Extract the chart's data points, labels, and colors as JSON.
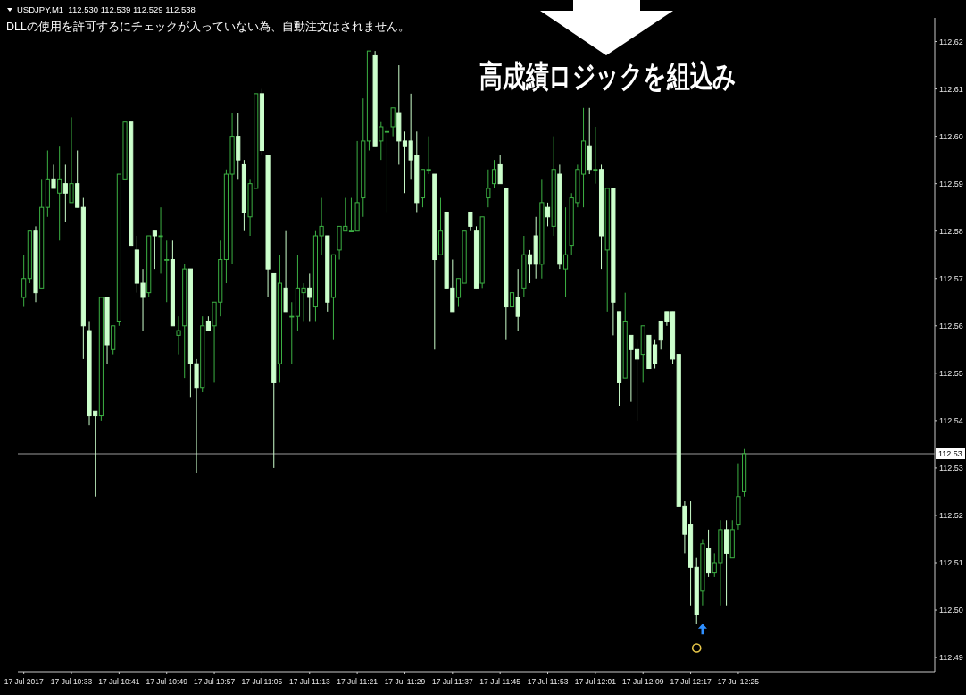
{
  "chart_data": {
    "type": "candlestick",
    "title": "USDJPY,M1  112.530 112.539 112.529 112.538",
    "subtitle": "DLLの使用を許可するにチェックが入っていない為、自動注文はされません。",
    "annotations": [
      "高成績ロジックを組込み",
      {
        "text": "112.53",
        "y": 112.538
      }
    ],
    "x": [
      "2017-07-17T10:25",
      "2017-07-17T10:26",
      "2017-07-17T10:27",
      "2017-07-17T10:28",
      "2017-07-17T10:29",
      "2017-07-17T10:30",
      "2017-07-17T10:31",
      "2017-07-17T10:32",
      "2017-07-17T10:33",
      "2017-07-17T10:34",
      "2017-07-17T10:35",
      "2017-07-17T10:36",
      "2017-07-17T10:37",
      "2017-07-17T10:38",
      "2017-07-17T10:39",
      "2017-07-17T10:40",
      "2017-07-17T10:41",
      "2017-07-17T10:42",
      "2017-07-17T10:43",
      "2017-07-17T10:44",
      "2017-07-17T10:45",
      "2017-07-17T10:46",
      "2017-07-17T10:47",
      "2017-07-17T10:48",
      "2017-07-17T10:49",
      "2017-07-17T10:50",
      "2017-07-17T10:51",
      "2017-07-17T10:52",
      "2017-07-17T10:53",
      "2017-07-17T10:54",
      "2017-07-17T10:55",
      "2017-07-17T10:56",
      "2017-07-17T10:57",
      "2017-07-17T10:58",
      "2017-07-17T10:59",
      "2017-07-17T11:00",
      "2017-07-17T11:01",
      "2017-07-17T11:02",
      "2017-07-17T11:03",
      "2017-07-17T11:04",
      "2017-07-17T11:05",
      "2017-07-17T11:06",
      "2017-07-17T11:07",
      "2017-07-17T11:08",
      "2017-07-17T11:09",
      "2017-07-17T11:10",
      "2017-07-17T11:11",
      "2017-07-17T11:12",
      "2017-07-17T11:13",
      "2017-07-17T11:14",
      "2017-07-17T11:15",
      "2017-07-17T11:16",
      "2017-07-17T11:17",
      "2017-07-17T11:18",
      "2017-07-17T11:19",
      "2017-07-17T11:20",
      "2017-07-17T11:21",
      "2017-07-17T11:22",
      "2017-07-17T11:23",
      "2017-07-17T11:24",
      "2017-07-17T11:25",
      "2017-07-17T11:26",
      "2017-07-17T11:27",
      "2017-07-17T11:28",
      "2017-07-17T11:29",
      "2017-07-17T11:30",
      "2017-07-17T11:31",
      "2017-07-17T11:32",
      "2017-07-17T11:33",
      "2017-07-17T11:34",
      "2017-07-17T11:35",
      "2017-07-17T11:36",
      "2017-07-17T11:37",
      "2017-07-17T11:38",
      "2017-07-17T11:39",
      "2017-07-17T11:40",
      "2017-07-17T11:41",
      "2017-07-17T11:42",
      "2017-07-17T11:43",
      "2017-07-17T11:44",
      "2017-07-17T11:45",
      "2017-07-17T11:46",
      "2017-07-17T11:47",
      "2017-07-17T11:48",
      "2017-07-17T11:49",
      "2017-07-17T11:50",
      "2017-07-17T11:51",
      "2017-07-17T11:52",
      "2017-07-17T11:53",
      "2017-07-17T11:54",
      "2017-07-17T11:55",
      "2017-07-17T11:56",
      "2017-07-17T11:57",
      "2017-07-17T11:58",
      "2017-07-17T11:59",
      "2017-07-17T12:00",
      "2017-07-17T12:01",
      "2017-07-17T12:02",
      "2017-07-17T12:03",
      "2017-07-17T12:04",
      "2017-07-17T12:05",
      "2017-07-17T12:06",
      "2017-07-17T12:07",
      "2017-07-17T12:08",
      "2017-07-17T12:09",
      "2017-07-17T12:10",
      "2017-07-17T12:11",
      "2017-07-17T12:12",
      "2017-07-17T12:13",
      "2017-07-17T12:14",
      "2017-07-17T12:15",
      "2017-07-17T12:16",
      "2017-07-17T12:17",
      "2017-07-17T12:18",
      "2017-07-17T12:19",
      "2017-07-17T12:20",
      "2017-07-17T12:21",
      "2017-07-17T12:22",
      "2017-07-17T12:23",
      "2017-07-17T12:24",
      "2017-07-17T12:25",
      "2017-07-17T12:26"
    ],
    "ohlc": [
      [
        112.571,
        112.58,
        112.569,
        112.575
      ],
      [
        112.575,
        112.585,
        112.574,
        112.585
      ],
      [
        112.585,
        112.586,
        112.57,
        112.572
      ],
      [
        112.573,
        112.596,
        112.573,
        112.59
      ],
      [
        112.59,
        112.602,
        112.588,
        112.596
      ],
      [
        112.596,
        112.599,
        112.594,
        112.594
      ],
      [
        112.593,
        112.603,
        112.583,
        112.596
      ],
      [
        112.595,
        112.599,
        112.587,
        112.593
      ],
      [
        112.591,
        112.609,
        112.591,
        112.595
      ],
      [
        112.595,
        112.602,
        112.59,
        112.59
      ],
      [
        112.59,
        112.592,
        112.558,
        112.565
      ],
      [
        112.564,
        112.566,
        112.544,
        112.546
      ],
      [
        112.547,
        112.547,
        112.529,
        112.546
      ],
      [
        112.546,
        112.571,
        112.545,
        112.571
      ],
      [
        112.571,
        112.571,
        112.557,
        112.561
      ],
      [
        112.56,
        112.565,
        112.559,
        112.565
      ],
      [
        112.566,
        112.597,
        112.565,
        112.597
      ],
      [
        112.596,
        112.608,
        112.596,
        112.608
      ],
      [
        112.608,
        112.608,
        112.582,
        112.582
      ],
      [
        112.581,
        112.584,
        112.572,
        112.574
      ],
      [
        112.574,
        112.577,
        112.564,
        112.571
      ],
      [
        112.572,
        112.584,
        112.571,
        112.584
      ],
      [
        112.585,
        112.585,
        112.577,
        112.584
      ],
      [
        112.584,
        112.59,
        112.576,
        112.584
      ],
      [
        112.579,
        112.583,
        112.57,
        112.579
      ],
      [
        112.579,
        112.583,
        112.565,
        112.565
      ],
      [
        112.563,
        112.567,
        112.559,
        112.564
      ],
      [
        112.565,
        112.578,
        112.554,
        112.577
      ],
      [
        112.577,
        112.577,
        112.55,
        112.557
      ],
      [
        112.557,
        112.558,
        112.534,
        112.552
      ],
      [
        112.552,
        112.567,
        112.551,
        112.565
      ],
      [
        112.566,
        112.567,
        112.564,
        112.564
      ],
      [
        112.565,
        112.57,
        112.553,
        112.57
      ],
      [
        112.57,
        112.583,
        112.567,
        112.579
      ],
      [
        112.579,
        112.598,
        112.574,
        112.597
      ],
      [
        112.597,
        112.61,
        112.578,
        112.605
      ],
      [
        112.605,
        112.61,
        112.596,
        112.6
      ],
      [
        112.599,
        112.6,
        112.585,
        112.589
      ],
      [
        112.588,
        112.596,
        112.584,
        112.595
      ],
      [
        112.594,
        112.614,
        112.594,
        112.614
      ],
      [
        112.614,
        112.615,
        112.601,
        112.602
      ],
      [
        112.601,
        112.601,
        112.571,
        112.577
      ],
      [
        112.576,
        112.576,
        112.535,
        112.553
      ],
      [
        112.557,
        112.58,
        112.553,
        112.574
      ],
      [
        112.573,
        112.585,
        112.568,
        112.568
      ],
      [
        112.567,
        112.57,
        112.557,
        112.567
      ],
      [
        112.567,
        112.58,
        112.564,
        112.573
      ],
      [
        112.572,
        112.574,
        112.566,
        112.573
      ],
      [
        112.573,
        112.576,
        112.566,
        112.571
      ],
      [
        112.569,
        112.585,
        112.566,
        112.584
      ],
      [
        112.584,
        112.592,
        112.58,
        112.586
      ],
      [
        112.584,
        112.584,
        112.568,
        112.57
      ],
      [
        112.571,
        112.58,
        112.562,
        112.58
      ],
      [
        112.581,
        112.586,
        112.579,
        112.586
      ],
      [
        112.585,
        112.592,
        112.585,
        112.586
      ],
      [
        112.585,
        112.592,
        112.585,
        112.585
      ],
      [
        112.585,
        112.604,
        112.585,
        112.591
      ],
      [
        112.592,
        112.613,
        112.588,
        112.604
      ],
      [
        112.604,
        112.623,
        112.602,
        112.623
      ],
      [
        112.622,
        112.623,
        112.603,
        112.603
      ],
      [
        112.604,
        112.608,
        112.6,
        112.607
      ],
      [
        112.606,
        112.607,
        112.589,
        112.606
      ],
      [
        112.607,
        112.611,
        112.605,
        112.611
      ],
      [
        112.61,
        112.62,
        112.599,
        112.604
      ],
      [
        112.604,
        112.606,
        112.593,
        112.603
      ],
      [
        112.604,
        112.614,
        112.596,
        112.6
      ],
      [
        112.601,
        112.606,
        112.589,
        112.591
      ],
      [
        112.592,
        112.598,
        112.59,
        112.598
      ],
      [
        112.598,
        112.605,
        112.597,
        112.598
      ],
      [
        112.597,
        112.597,
        112.56,
        112.579
      ],
      [
        112.58,
        112.592,
        112.58,
        112.585
      ],
      [
        112.589,
        112.589,
        112.573,
        112.573
      ],
      [
        112.573,
        112.579,
        112.568,
        112.568
      ],
      [
        112.571,
        112.575,
        112.569,
        112.575
      ],
      [
        112.574,
        112.585,
        112.574,
        112.585
      ],
      [
        112.589,
        112.589,
        112.585,
        112.586
      ],
      [
        112.585,
        112.586,
        112.573,
        112.573
      ],
      [
        112.574,
        112.588,
        112.573,
        112.588
      ],
      [
        112.592,
        112.598,
        112.59,
        112.594
      ],
      [
        112.595,
        112.6,
        112.594,
        112.598
      ],
      [
        112.599,
        112.601,
        112.595,
        112.595
      ],
      [
        112.594,
        112.594,
        112.562,
        112.569
      ],
      [
        112.569,
        112.572,
        112.563,
        112.572
      ],
      [
        112.571,
        112.577,
        112.564,
        112.567
      ],
      [
        112.573,
        112.584,
        112.571,
        112.58
      ],
      [
        112.58,
        112.581,
        112.574,
        112.578
      ],
      [
        112.584,
        112.588,
        112.575,
        112.578
      ],
      [
        112.578,
        112.596,
        112.575,
        112.591
      ],
      [
        112.59,
        112.591,
        112.586,
        112.588
      ],
      [
        112.586,
        112.605,
        112.584,
        112.598
      ],
      [
        112.597,
        112.599,
        112.577,
        112.578
      ],
      [
        112.577,
        112.59,
        112.571,
        112.58
      ],
      [
        112.582,
        112.593,
        112.58,
        112.592
      ],
      [
        112.591,
        112.599,
        112.59,
        112.598
      ],
      [
        112.597,
        112.611,
        112.59,
        112.604
      ],
      [
        112.603,
        112.611,
        112.597,
        112.598
      ],
      [
        112.598,
        112.607,
        112.595,
        112.598
      ],
      [
        112.598,
        112.599,
        112.577,
        112.584
      ],
      [
        112.581,
        112.594,
        112.568,
        112.594
      ],
      [
        112.594,
        112.594,
        112.563,
        112.57
      ],
      [
        112.568,
        112.568,
        112.548,
        112.553
      ],
      [
        112.554,
        112.572,
        112.554,
        112.566
      ],
      [
        112.563,
        112.563,
        112.549,
        112.56
      ],
      [
        112.56,
        112.562,
        112.545,
        112.558
      ],
      [
        112.559,
        112.565,
        112.553,
        112.565
      ],
      [
        112.563,
        112.563,
        112.556,
        112.556
      ],
      [
        112.561,
        112.562,
        112.556,
        112.557
      ],
      [
        112.566,
        112.566,
        112.56,
        112.562
      ],
      [
        112.568,
        112.568,
        112.565,
        112.566
      ],
      [
        112.568,
        112.568,
        112.557,
        112.558
      ],
      [
        112.559,
        112.559,
        112.527,
        112.527
      ],
      [
        112.527,
        112.528,
        112.517,
        112.521
      ],
      [
        112.523,
        112.528,
        112.506,
        112.514
      ],
      [
        112.514,
        112.516,
        112.502,
        112.504
      ],
      [
        112.509,
        112.52,
        112.506,
        112.519
      ],
      [
        112.518,
        112.522,
        112.512,
        112.513
      ],
      [
        112.513,
        112.517,
        112.512,
        112.515
      ],
      [
        112.515,
        112.524,
        112.506,
        112.522
      ],
      [
        112.522,
        112.524,
        112.506,
        112.517
      ],
      [
        112.516,
        112.524,
        112.516,
        112.522
      ],
      [
        112.523,
        112.536,
        112.522,
        112.529
      ],
      [
        112.53,
        112.539,
        112.529,
        112.538
      ]
    ],
    "colors": [
      "#3cb043",
      "#3cb043",
      "#ccffcc",
      "#3cb043",
      "#3cb043",
      "#ccffcc",
      "#3cb043",
      "#ccffcc",
      "#3cb043",
      "#ccffcc",
      "#ccffcc",
      "#ccffcc",
      "#ccffcc",
      "#3cb043",
      "#ccffcc",
      "#3cb043",
      "#3cb043",
      "#3cb043",
      "#ccffcc",
      "#ccffcc",
      "#ccffcc",
      "#3cb043",
      "#ccffcc",
      "#3cb043",
      "#3cb043",
      "#ccffcc",
      "#3cb043",
      "#3cb043",
      "#ccffcc",
      "#ccffcc",
      "#3cb043",
      "#ccffcc",
      "#3cb043",
      "#3cb043",
      "#3cb043",
      "#3cb043",
      "#ccffcc",
      "#ccffcc",
      "#3cb043",
      "#3cb043",
      "#ccffcc",
      "#ccffcc",
      "#ccffcc",
      "#3cb043",
      "#ccffcc",
      "#3cb043",
      "#3cb043",
      "#3cb043",
      "#ccffcc",
      "#3cb043",
      "#3cb043",
      "#ccffcc",
      "#3cb043",
      "#3cb043",
      "#3cb043",
      "#3cb043",
      "#3cb043",
      "#3cb043",
      "#3cb043",
      "#ccffcc",
      "#3cb043",
      "#3cb043",
      "#3cb043",
      "#ccffcc",
      "#ccffcc",
      "#ccffcc",
      "#ccffcc",
      "#3cb043",
      "#3cb043",
      "#ccffcc",
      "#3cb043",
      "#ccffcc",
      "#ccffcc",
      "#3cb043",
      "#3cb043",
      "#ccffcc",
      "#ccffcc",
      "#3cb043",
      "#3cb043",
      "#3cb043",
      "#ccffcc",
      "#ccffcc",
      "#3cb043",
      "#ccffcc",
      "#3cb043",
      "#ccffcc",
      "#ccffcc",
      "#3cb043",
      "#ccffcc",
      "#3cb043",
      "#ccffcc",
      "#3cb043",
      "#3cb043",
      "#3cb043",
      "#3cb043",
      "#ccffcc",
      "#3cb043",
      "#ccffcc",
      "#3cb043",
      "#ccffcc",
      "#ccffcc",
      "#3cb043",
      "#ccffcc",
      "#ccffcc",
      "#3cb043",
      "#ccffcc",
      "#ccffcc",
      "#ccffcc",
      "#ccffcc",
      "#ccffcc",
      "#ccffcc",
      "#ccffcc",
      "#ccffcc",
      "#ccffcc",
      "#3cb043",
      "#ccffcc",
      "#3cb043",
      "#3cb043",
      "#ccffcc",
      "#3cb043",
      "#3cb043",
      "#3cb043"
    ],
    "series": [
      {
        "type": "scatter",
        "x": [
          "2017-07-17T12:19"
        ],
        "values": [
          112.501
        ],
        "color": "#2f8fff",
        "marker": "triangle"
      },
      {
        "type": "scatter",
        "x": [
          "2017-07-17T12:18"
        ],
        "values": [
          112.497
        ],
        "color": "#e8c84a",
        "marker": "circle"
      }
    ],
    "xlim": [
      "2017-07-17T10:24",
      "2017-07-17T12:58"
    ],
    "xticks": [
      {
        "value": "2017-07-17T10:25",
        "label": "17 Jul 2017"
      },
      {
        "value": "2017-07-17T10:33",
        "label": "17 Jul 10:33"
      },
      {
        "value": "2017-07-17T10:41",
        "label": "17 Jul 10:41"
      },
      {
        "value": "2017-07-17T10:49",
        "label": "17 Jul 10:49"
      },
      {
        "value": "2017-07-17T10:57",
        "label": "17 Jul 10:57"
      },
      {
        "value": "2017-07-17T11:05",
        "label": "17 Jul 11:05"
      },
      {
        "value": "2017-07-17T11:13",
        "label": "17 Jul 11:13"
      },
      {
        "value": "2017-07-17T11:21",
        "label": "17 Jul 11:21"
      },
      {
        "value": "2017-07-17T11:29",
        "label": "17 Jul 11:29"
      },
      {
        "value": "2017-07-17T11:37",
        "label": "17 Jul 11:37"
      },
      {
        "value": "2017-07-17T11:45",
        "label": "17 Jul 11:45"
      },
      {
        "value": "2017-07-17T11:53",
        "label": "17 Jul 11:53"
      },
      {
        "value": "2017-07-17T12:01",
        "label": "17 Jul 12:01"
      },
      {
        "value": "2017-07-17T12:09",
        "label": "17 Jul 12:09"
      },
      {
        "value": "2017-07-17T12:17",
        "label": "17 Jul 12:17"
      },
      {
        "value": "2017-07-17T12:25",
        "label": "17 Jul 12:25"
      }
    ],
    "ylim": [
      112.492,
      112.63
    ],
    "yticks": [
      {
        "value": 112.625,
        "label": "112.62"
      },
      {
        "value": 112.615,
        "label": "112.61"
      },
      {
        "value": 112.605,
        "label": "112.60"
      },
      {
        "value": 112.595,
        "label": "112.59"
      },
      {
        "value": 112.585,
        "label": "112.58"
      },
      {
        "value": 112.575,
        "label": "112.57"
      },
      {
        "value": 112.565,
        "label": "112.56"
      },
      {
        "value": 112.555,
        "label": "112.55"
      },
      {
        "value": 112.545,
        "label": "112.54"
      },
      {
        "value": 112.535,
        "label": "112.53"
      },
      {
        "value": 112.525,
        "label": "112.52"
      },
      {
        "value": 112.515,
        "label": "112.51"
      },
      {
        "value": 112.505,
        "label": "112.50"
      },
      {
        "value": 112.495,
        "label": "112.49"
      }
    ],
    "ref_lines": [
      {
        "axis": "y",
        "value": 112.538,
        "color": "#9a9a9a"
      }
    ]
  }
}
